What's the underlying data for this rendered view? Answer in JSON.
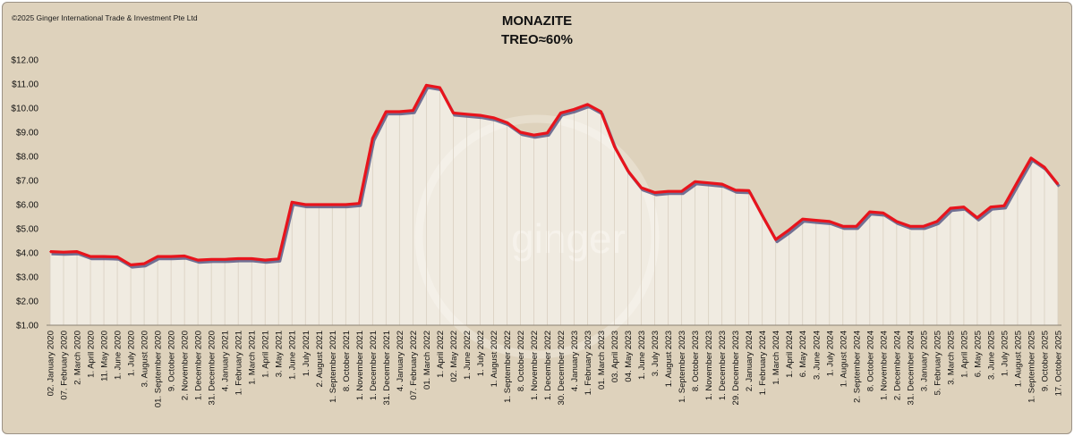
{
  "copyright": "©2025 Ginger International Trade & Investment Pte Ltd",
  "watermark": "ginger",
  "colors": {
    "background": "#ded2bc",
    "line": "#e8141c",
    "shadow": "#5a5a86",
    "fill": "#ffffff"
  },
  "chart_data": {
    "type": "line",
    "title": "MONAZITE",
    "subtitle": "TREO≈60%",
    "xlabel": "",
    "ylabel": "",
    "ylim": [
      1,
      12
    ],
    "yticks": [
      "$1.00",
      "$2.00",
      "$3.00",
      "$4.00",
      "$5.00",
      "$6.00",
      "$7.00",
      "$8.00",
      "$9.00",
      "$10.00",
      "$11.00",
      "$12.00"
    ],
    "grid": false,
    "x_tick_labels": [
      "02. January 2020",
      "07. February 2020",
      "2. March 2020",
      "1. April 2020",
      "11. May 2020",
      "1. June 2020",
      "1. July 2020",
      "3. August 2020",
      "01. September 2020",
      "9. October 2020",
      "2. November 2020",
      "1. December 2020",
      "31. December 2020",
      "4. January 2021",
      "1. February 2021",
      "1. March 2021",
      "1. April 2021",
      "3. May 2021",
      "1. June 2021",
      "1. July 2021",
      "2. August 2021",
      "1. September 2021",
      "8. October 2021",
      "1. November 2021",
      "1. December 2021",
      "31. December 2021",
      "4. January 2022",
      "07. February 2022",
      "01. March 2022",
      "1. April 2022",
      "02. May 2022",
      "1. June 2022",
      "1. July 2022",
      "1. August 2022",
      "1. September 2022",
      "8. October 2022",
      "1. November 2022",
      "1. December 2022",
      "30. December 2022",
      "4. January 2023",
      "1. February 2023",
      "01. March 2023",
      "03. April 2023",
      "04. May 2023",
      "1. June 2023",
      "3. July 2023",
      "1. August 2023",
      "1. September 2023",
      "8. October 2023",
      "1. November 2023",
      "1. December 2023",
      "29. December 2023",
      "2. January 2024",
      "1. February 2024",
      "1. March 2024",
      "1. April 2024",
      "6. May 2024",
      "3. June 2024",
      "1. July 2024",
      "1. August 2024",
      "2. September 2024",
      "8. October 2024",
      "1. November 2024",
      "2. December 2024",
      "31. December 2024",
      "3. January 2025",
      "5. February 2025",
      "3. March 2025",
      "1. April 2025",
      "6. May 2025",
      "3. June 2025",
      "1. July 2025",
      "1. August 2025",
      "1. September 2025",
      "9. October 2025",
      "17. October 2025"
    ],
    "series": [
      {
        "values": [
          4.05,
          4.03,
          4.05,
          3.85,
          3.85,
          3.83,
          3.5,
          3.55,
          3.85,
          3.85,
          3.87,
          3.7,
          3.73,
          3.73,
          3.76,
          3.76,
          3.7,
          3.75,
          6.1,
          6.0,
          6.0,
          6.0,
          6.0,
          6.05,
          8.75,
          9.85,
          9.85,
          9.9,
          10.95,
          10.85,
          9.8,
          9.75,
          9.7,
          9.6,
          9.4,
          9.0,
          8.88,
          8.97,
          9.8,
          9.95,
          10.15,
          9.85,
          8.4,
          7.4,
          6.7,
          6.5,
          6.55,
          6.55,
          6.95,
          6.9,
          6.85,
          6.6,
          6.58,
          5.55,
          4.55,
          4.95,
          5.4,
          5.35,
          5.3,
          5.1,
          5.1,
          5.7,
          5.65,
          5.3,
          5.1,
          5.1,
          5.3,
          5.85,
          5.9,
          5.45,
          5.9,
          5.95,
          6.95,
          7.93,
          7.55,
          6.85
        ]
      }
    ]
  }
}
